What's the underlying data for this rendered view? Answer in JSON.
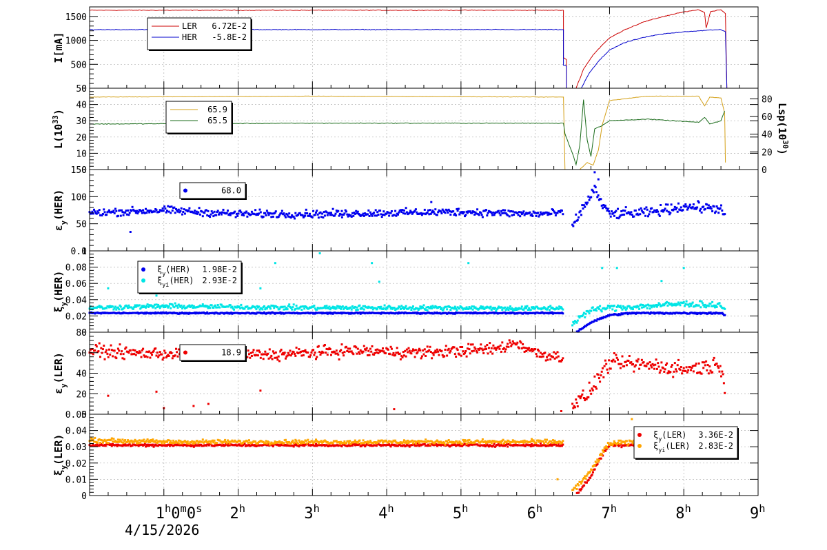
{
  "chart_data": [
    {
      "type": "line",
      "panel": "beam-current",
      "ylabel": "I[mA]",
      "ylim": [
        0,
        1700
      ],
      "yticks": [
        0,
        500,
        1000,
        1500
      ],
      "legend": {
        "placement": "top-left",
        "entries": [
          {
            "name": "LER",
            "value": "6.72E-2",
            "color": "#cc0000",
            "marker": "line"
          },
          {
            "name": "HER",
            "value": "-5.8E-2",
            "color": "#0000cc",
            "marker": "line"
          }
        ]
      },
      "series": [
        {
          "name": "LER",
          "color": "#cc0000",
          "kind": "line",
          "points": [
            [
              0,
              1630
            ],
            [
              1.6,
              1630
            ],
            [
              3.5,
              1630
            ],
            [
              6.38,
              1630
            ],
            [
              6.38,
              640
            ],
            [
              6.42,
              600
            ],
            [
              6.42,
              0
            ],
            [
              6.55,
              0
            ],
            [
              6.65,
              400
            ],
            [
              6.78,
              700
            ],
            [
              6.9,
              900
            ],
            [
              7.0,
              1050
            ],
            [
              7.2,
              1220
            ],
            [
              7.45,
              1380
            ],
            [
              7.7,
              1490
            ],
            [
              7.95,
              1580
            ],
            [
              8.2,
              1640
            ],
            [
              8.28,
              1580
            ],
            [
              8.3,
              1260
            ],
            [
              8.36,
              1600
            ],
            [
              8.5,
              1640
            ],
            [
              8.56,
              1560
            ],
            [
              8.58,
              0
            ],
            [
              9.0,
              0
            ]
          ]
        },
        {
          "name": "HER",
          "color": "#0000cc",
          "kind": "line",
          "points": [
            [
              0,
              1225
            ],
            [
              3.5,
              1225
            ],
            [
              6.38,
              1225
            ],
            [
              6.38,
              480
            ],
            [
              6.42,
              460
            ],
            [
              6.42,
              0
            ],
            [
              6.62,
              0
            ],
            [
              6.72,
              300
            ],
            [
              6.85,
              560
            ],
            [
              7.0,
              800
            ],
            [
              7.2,
              950
            ],
            [
              7.45,
              1060
            ],
            [
              7.7,
              1130
            ],
            [
              8.0,
              1180
            ],
            [
              8.3,
              1210
            ],
            [
              8.5,
              1225
            ],
            [
              8.56,
              1180
            ],
            [
              8.58,
              0
            ],
            [
              9.0,
              0
            ]
          ]
        }
      ]
    },
    {
      "type": "line",
      "panel": "luminosity",
      "ylabel": "L(10³³)",
      "ylabel_base": "L(10",
      "ylabel_sup": "33",
      "ylim": [
        0,
        50
      ],
      "yticks": [
        0,
        10,
        20,
        30,
        40,
        50
      ],
      "y2label": "Lsp(10³⁰)",
      "y2label_base": "Lsp(10",
      "y2label_sup": "30",
      "y2lim": [
        0,
        92
      ],
      "y2ticks": [
        0,
        20,
        40,
        60,
        80
      ],
      "legend": {
        "placement": "top-left",
        "entries": [
          {
            "name": "",
            "value": "65.9",
            "color": "#d4a017",
            "marker": "line"
          },
          {
            "name": "",
            "value": "65.5",
            "color": "#1a6b1a",
            "marker": "line"
          }
        ]
      },
      "series": [
        {
          "name": "",
          "axis": "y2",
          "color": "#d4a017",
          "kind": "line",
          "points": [
            [
              0,
              82
            ],
            [
              3.0,
              83
            ],
            [
              6.38,
              82
            ],
            [
              6.4,
              0
            ],
            [
              6.6,
              0
            ],
            [
              6.7,
              8
            ],
            [
              6.78,
              5
            ],
            [
              6.85,
              22
            ],
            [
              6.9,
              50
            ],
            [
              7.0,
              78
            ],
            [
              7.5,
              83
            ],
            [
              8.2,
              83
            ],
            [
              8.28,
              72
            ],
            [
              8.35,
              82
            ],
            [
              8.5,
              81
            ],
            [
              8.55,
              64
            ],
            [
              8.56,
              8
            ]
          ]
        },
        {
          "name": "",
          "axis": "y",
          "color": "#1a6b1a",
          "kind": "line",
          "points": [
            [
              0,
              28
            ],
            [
              3.0,
              28.5
            ],
            [
              6.38,
              28.5
            ],
            [
              6.4,
              22
            ],
            [
              6.5,
              10
            ],
            [
              6.55,
              3
            ],
            [
              6.6,
              15
            ],
            [
              6.65,
              43
            ],
            [
              6.7,
              18
            ],
            [
              6.75,
              8
            ],
            [
              6.8,
              25
            ],
            [
              6.9,
              27
            ],
            [
              7.0,
              30
            ],
            [
              7.5,
              31
            ],
            [
              8.2,
              29
            ],
            [
              8.28,
              32
            ],
            [
              8.35,
              28
            ],
            [
              8.5,
              30
            ],
            [
              8.55,
              36
            ]
          ]
        }
      ]
    },
    {
      "type": "scatter",
      "panel": "emittance-her",
      "ylabel": "εy(HER)",
      "ylabel_base": "ε",
      "ylabel_sub": "y",
      "ylabel_tail": "(HER)",
      "ylim": [
        0,
        150
      ],
      "yticks": [
        0,
        50,
        100,
        150
      ],
      "legend": {
        "placement": "top-left",
        "entries": [
          {
            "name": "",
            "value": "68.0",
            "color": "#0000ee",
            "marker": "dot"
          }
        ]
      },
      "series": [
        {
          "name": "",
          "color": "#0000ee",
          "kind": "scatter",
          "level_points": [
            [
              0,
              70
            ],
            [
              1.0,
              75
            ],
            [
              2.0,
              68
            ],
            [
              3.0,
              68
            ],
            [
              4.0,
              70
            ],
            [
              5.0,
              72
            ],
            [
              6.0,
              68
            ],
            [
              6.38,
              70
            ]
          ],
          "level2_points": [
            [
              6.5,
              45
            ],
            [
              6.65,
              80
            ],
            [
              6.8,
              115
            ],
            [
              6.9,
              85
            ],
            [
              7.0,
              68
            ],
            [
              7.5,
              70
            ],
            [
              8.0,
              82
            ],
            [
              8.5,
              78
            ],
            [
              8.56,
              62
            ]
          ],
          "scatter": 6,
          "outliers": [
            [
              0.55,
              35
            ],
            [
              2.9,
              65
            ],
            [
              3.4,
              62
            ],
            [
              4.6,
              90
            ],
            [
              6.8,
              145
            ],
            [
              6.85,
              132
            ]
          ]
        }
      ]
    },
    {
      "type": "scatter",
      "panel": "beam-beam-her",
      "ylabel": "ξy(HER)",
      "ylabel_base": "ξ",
      "ylabel_sub": "y",
      "ylabel_tail": "(HER)",
      "ylim": [
        0,
        0.1
      ],
      "yticks": [
        0,
        0.02,
        0.04,
        0.06,
        0.08,
        0.1
      ],
      "legend": {
        "placement": "top-left",
        "entries": [
          {
            "name": "ξy(HER)",
            "name_base": "ξ",
            "name_sub": "y",
            "name_tail": "(HER)",
            "value": "1.98E-2",
            "color": "#0000ee",
            "marker": "dot"
          },
          {
            "name": "ξyi(HER)",
            "name_base": "ξ",
            "name_sub": "yi",
            "name_tail": "(HER)",
            "value": "2.93E-2",
            "color": "#00e5e5",
            "marker": "dot"
          }
        ]
      },
      "series": [
        {
          "name": "ξy(HER)",
          "color": "#0000ee",
          "kind": "scatter",
          "level_points": [
            [
              0,
              0.0235
            ],
            [
              6.38,
              0.0235
            ]
          ],
          "level2_points": [
            [
              6.55,
              0.0
            ],
            [
              6.75,
              0.012
            ],
            [
              7.0,
              0.021
            ],
            [
              7.3,
              0.0235
            ],
            [
              8.5,
              0.0235
            ],
            [
              8.56,
              0.021
            ]
          ],
          "scatter": 0.0007,
          "outliers": []
        },
        {
          "name": "ξyi(HER)",
          "color": "#00e5e5",
          "kind": "scatter",
          "level_points": [
            [
              0,
              0.03
            ],
            [
              1.0,
              0.032
            ],
            [
              3.0,
              0.03
            ],
            [
              5.0,
              0.03
            ],
            [
              6.0,
              0.029
            ],
            [
              6.38,
              0.03
            ]
          ],
          "level2_points": [
            [
              6.5,
              0.01
            ],
            [
              6.65,
              0.022
            ],
            [
              6.8,
              0.028
            ],
            [
              7.0,
              0.03
            ],
            [
              7.5,
              0.032
            ],
            [
              8.0,
              0.035
            ],
            [
              8.5,
              0.033
            ],
            [
              8.56,
              0.028
            ]
          ],
          "scatter": 0.0025,
          "outliers": [
            [
              0.25,
              0.054
            ],
            [
              0.9,
              0.045
            ],
            [
              1.8,
              0.048
            ],
            [
              2.3,
              0.054
            ],
            [
              2.5,
              0.085
            ],
            [
              3.1,
              0.097
            ],
            [
              3.8,
              0.085
            ],
            [
              3.9,
              0.062
            ],
            [
              5.1,
              0.085
            ],
            [
              6.9,
              0.079
            ],
            [
              7.1,
              0.079
            ],
            [
              7.7,
              0.063
            ],
            [
              8.0,
              0.079
            ]
          ]
        }
      ]
    },
    {
      "type": "scatter",
      "panel": "emittance-ler",
      "ylabel": "εy(LER)",
      "ylabel_base": "ε",
      "ylabel_sub": "y",
      "ylabel_tail": "(LER)",
      "ylim": [
        0,
        80
      ],
      "yticks": [
        0,
        20,
        40,
        60,
        80
      ],
      "legend": {
        "placement": "top-left",
        "entries": [
          {
            "name": "",
            "value": "18.9",
            "color": "#ee0000",
            "marker": "dot"
          }
        ]
      },
      "series": [
        {
          "name": "",
          "color": "#ee0000",
          "kind": "scatter",
          "level_points": [
            [
              0,
              62
            ],
            [
              0.5,
              60
            ],
            [
              1.5,
              58
            ],
            [
              2.5,
              58
            ],
            [
              3.5,
              62
            ],
            [
              4.5,
              60
            ],
            [
              5.5,
              64
            ],
            [
              5.75,
              70
            ],
            [
              6.0,
              60
            ],
            [
              6.38,
              55
            ]
          ],
          "level2_points": [
            [
              6.5,
              10
            ],
            [
              6.7,
              18
            ],
            [
              6.85,
              35
            ],
            [
              7.0,
              50
            ],
            [
              7.5,
              48
            ],
            [
              8.0,
              44
            ],
            [
              8.5,
              48
            ],
            [
              8.56,
              25
            ]
          ],
          "scatter": 5,
          "outliers": [
            [
              0.25,
              18
            ],
            [
              0.9,
              22
            ],
            [
              1.0,
              6
            ],
            [
              1.4,
              8
            ],
            [
              1.6,
              10
            ],
            [
              2.3,
              23
            ],
            [
              4.1,
              5
            ],
            [
              6.35,
              3
            ]
          ]
        }
      ]
    },
    {
      "type": "scatter",
      "panel": "beam-beam-ler",
      "ylabel": "ξy(LER)",
      "ylabel_base": "ξ",
      "ylabel_sub": "y",
      "ylabel_tail": "(LER)",
      "ylim": [
        0,
        0.05
      ],
      "yticks": [
        0,
        0.01,
        0.02,
        0.03,
        0.04,
        0.05
      ],
      "legend": {
        "placement": "top-right",
        "entries": [
          {
            "name": "ξy(LER)",
            "name_base": "ξ",
            "name_sub": "y",
            "name_tail": "(LER)",
            "value": "3.36E-2",
            "color": "#ee0000",
            "marker": "dot"
          },
          {
            "name": "ξyi(LER)",
            "name_base": "ξ",
            "name_sub": "yi",
            "name_tail": "(LER)",
            "value": "2.83E-2",
            "color": "#ffa500",
            "marker": "dot"
          }
        ]
      },
      "series": [
        {
          "name": "ξy(LER)",
          "color": "#ee0000",
          "kind": "scatter",
          "level_points": [
            [
              0,
              0.031
            ],
            [
              6.38,
              0.031
            ]
          ],
          "level2_points": [
            [
              6.55,
              0.0
            ],
            [
              6.75,
              0.012
            ],
            [
              6.9,
              0.025
            ],
            [
              7.0,
              0.031
            ],
            [
              8.56,
              0.032
            ]
          ],
          "scatter": 0.0007,
          "outliers": []
        },
        {
          "name": "ξyi(LER)",
          "color": "#ffa500",
          "kind": "scatter",
          "level_points": [
            [
              0,
              0.034
            ],
            [
              1.0,
              0.033
            ],
            [
              3.0,
              0.033
            ],
            [
              5.0,
              0.033
            ],
            [
              6.38,
              0.033
            ]
          ],
          "level2_points": [
            [
              6.5,
              0.003
            ],
            [
              6.7,
              0.012
            ],
            [
              6.9,
              0.026
            ],
            [
              7.0,
              0.032
            ],
            [
              7.5,
              0.033
            ],
            [
              8.0,
              0.033
            ],
            [
              8.3,
              0.035
            ],
            [
              8.56,
              0.033
            ]
          ],
          "scatter": 0.0011,
          "outliers": [
            [
              6.3,
              0.01
            ],
            [
              7.3,
              0.047
            ]
          ]
        }
      ]
    }
  ],
  "x_axis": {
    "range": [
      0,
      9
    ],
    "ticks": [
      {
        "v": 1,
        "label": "1",
        "sup": "h",
        "extra": "0",
        "extra_sup": "m",
        "extra2": "0",
        "extra2_sup": "s"
      },
      {
        "v": 2,
        "label": "2",
        "sup": "h"
      },
      {
        "v": 3,
        "label": "3",
        "sup": "h"
      },
      {
        "v": 4,
        "label": "4",
        "sup": "h"
      },
      {
        "v": 5,
        "label": "5",
        "sup": "h"
      },
      {
        "v": 6,
        "label": "6",
        "sup": "h"
      },
      {
        "v": 7,
        "label": "7",
        "sup": "h"
      },
      {
        "v": 8,
        "label": "8",
        "sup": "h"
      },
      {
        "v": 9,
        "label": "9",
        "sup": "h"
      }
    ],
    "date": "4/15/2026"
  }
}
